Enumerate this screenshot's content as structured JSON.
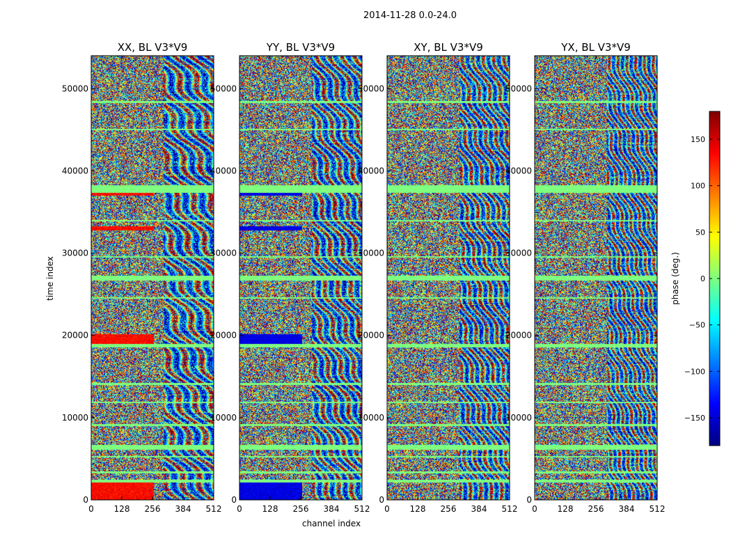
{
  "suptitle": "2014-11-28 0.0-24.0",
  "chart_data": {
    "type": "heatmap",
    "title": "2014-11-28 0.0-24.0",
    "xlabel": "channel index",
    "ylabel": "time index",
    "xlim": [
      0,
      512
    ],
    "ylim": [
      0,
      54000
    ],
    "xticks": [
      0,
      128,
      256,
      384,
      512
    ],
    "yticks": [
      0,
      10000,
      20000,
      30000,
      40000,
      50000
    ],
    "colormap": "jet",
    "colors": [
      "#00007f",
      "#0000ff",
      "#007fff",
      "#00ffff",
      "#7fff7f",
      "#ffff00",
      "#ff7f00",
      "#ff0000",
      "#7f0000"
    ],
    "flag_color": "#7fff7f",
    "colorbar": {
      "label": "phase (deg.)",
      "range": [
        -180,
        180
      ],
      "ticks": [
        150,
        100,
        50,
        0,
        -50,
        -100,
        -150
      ],
      "tick_labels": [
        "150",
        "100",
        "50",
        "0",
        "−50",
        "−100",
        "−150"
      ]
    },
    "panels": [
      {
        "title": "XX, BL V3*V9",
        "polarization": "XX"
      },
      {
        "title": "YY, BL V3*V9",
        "polarization": "YY"
      },
      {
        "title": "XY, BL V3*V9",
        "polarization": "XY"
      },
      {
        "title": "YX, BL V3*V9",
        "polarization": "YX"
      }
    ]
  }
}
